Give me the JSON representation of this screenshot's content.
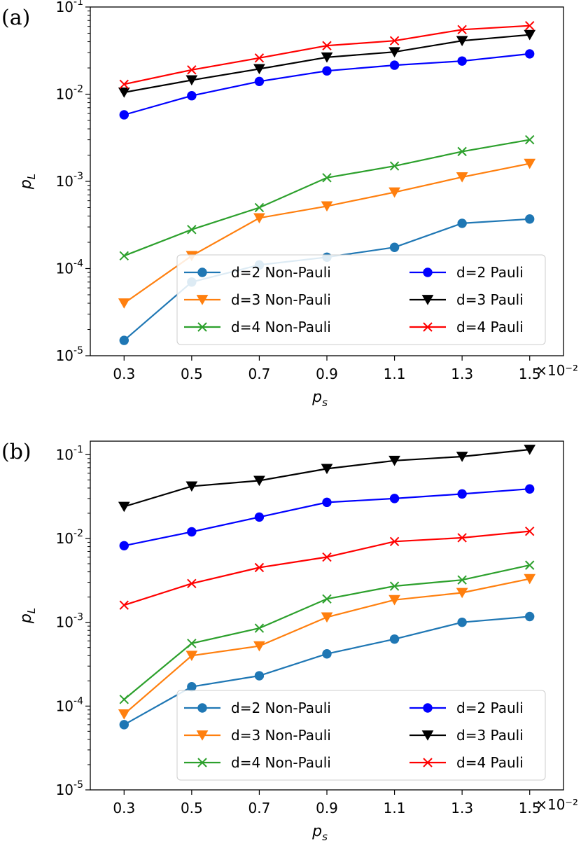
{
  "chart_data": [
    {
      "type": "line",
      "panel_label": "(a)",
      "xlabel": "p_s",
      "ylabel": "p_L",
      "x_multiplier": "×10⁻²",
      "x": [
        0.3,
        0.5,
        0.7,
        0.9,
        1.1,
        1.3,
        1.5
      ],
      "xtick_labels": [
        "0.3",
        "0.5",
        "0.7",
        "0.9",
        "1.1",
        "1.3",
        "1.5"
      ],
      "xlim": [
        0.2,
        1.6
      ],
      "yscale": "log",
      "ylim": [
        1e-05,
        0.1
      ],
      "ytick_exponents": [
        "-5",
        "-4",
        "-3",
        "-2",
        "-1"
      ],
      "legend_position": "lower-right",
      "series": [
        {
          "name": "d=2 Non-Pauli",
          "color": "#1f77b4",
          "marker": "circle",
          "values": [
            1.5e-05,
            7e-05,
            0.00011,
            0.000135,
            0.000175,
            0.00033,
            0.00037
          ]
        },
        {
          "name": "d=3 Non-Pauli",
          "color": "#ff7f0e",
          "marker": "triangle-down",
          "values": [
            4e-05,
            0.00014,
            0.00038,
            0.00052,
            0.00075,
            0.00112,
            0.0016
          ]
        },
        {
          "name": "d=4 Non-Pauli",
          "color": "#2ca02c",
          "marker": "x",
          "values": [
            0.00014,
            0.00028,
            0.0005,
            0.0011,
            0.0015,
            0.0022,
            0.003
          ]
        },
        {
          "name": "d=2 Pauli",
          "color": "#0000ff",
          "marker": "circle",
          "values": [
            0.0058,
            0.0096,
            0.014,
            0.0185,
            0.0215,
            0.024,
            0.029
          ]
        },
        {
          "name": "d=3 Pauli",
          "color": "#000000",
          "marker": "triangle-down",
          "values": [
            0.0105,
            0.0145,
            0.0195,
            0.0265,
            0.0305,
            0.041,
            0.048
          ]
        },
        {
          "name": "d=4 Pauli",
          "color": "#ff0000",
          "marker": "x",
          "values": [
            0.013,
            0.019,
            0.026,
            0.036,
            0.041,
            0.055,
            0.061
          ]
        }
      ]
    },
    {
      "type": "line",
      "panel_label": "(b)",
      "xlabel": "p_s",
      "ylabel": "p_L",
      "x_multiplier": "×10⁻²",
      "x": [
        0.3,
        0.5,
        0.7,
        0.9,
        1.1,
        1.3,
        1.5
      ],
      "xtick_labels": [
        "0.3",
        "0.5",
        "0.7",
        "0.9",
        "1.1",
        "1.3",
        "1.5"
      ],
      "xlim": [
        0.2,
        1.6
      ],
      "yscale": "log",
      "ylim": [
        1e-05,
        0.145
      ],
      "ytick_exponents": [
        "-5",
        "-4",
        "-3",
        "-2",
        "-1"
      ],
      "legend_position": "lower-right",
      "series": [
        {
          "name": "d=2 Non-Pauli",
          "color": "#1f77b4",
          "marker": "circle",
          "values": [
            6e-05,
            0.00017,
            0.00023,
            0.00042,
            0.00063,
            0.001,
            0.00117
          ]
        },
        {
          "name": "d=3 Non-Pauli",
          "color": "#ff7f0e",
          "marker": "triangle-down",
          "values": [
            8e-05,
            0.0004,
            0.00052,
            0.00115,
            0.00185,
            0.00225,
            0.0033
          ]
        },
        {
          "name": "d=4 Non-Pauli",
          "color": "#2ca02c",
          "marker": "x",
          "values": [
            0.00012,
            0.00056,
            0.00085,
            0.0019,
            0.0027,
            0.0032,
            0.0048
          ]
        },
        {
          "name": "d=2 Pauli",
          "color": "#0000ff",
          "marker": "circle",
          "values": [
            0.0082,
            0.012,
            0.018,
            0.027,
            0.03,
            0.034,
            0.039
          ]
        },
        {
          "name": "d=3 Pauli",
          "color": "#000000",
          "marker": "triangle-down",
          "values": [
            0.024,
            0.042,
            0.049,
            0.068,
            0.085,
            0.095,
            0.115
          ]
        },
        {
          "name": "d=4 Pauli",
          "color": "#ff0000",
          "marker": "x",
          "values": [
            0.0016,
            0.0029,
            0.0045,
            0.006,
            0.0092,
            0.0102,
            0.0122
          ]
        }
      ]
    }
  ]
}
